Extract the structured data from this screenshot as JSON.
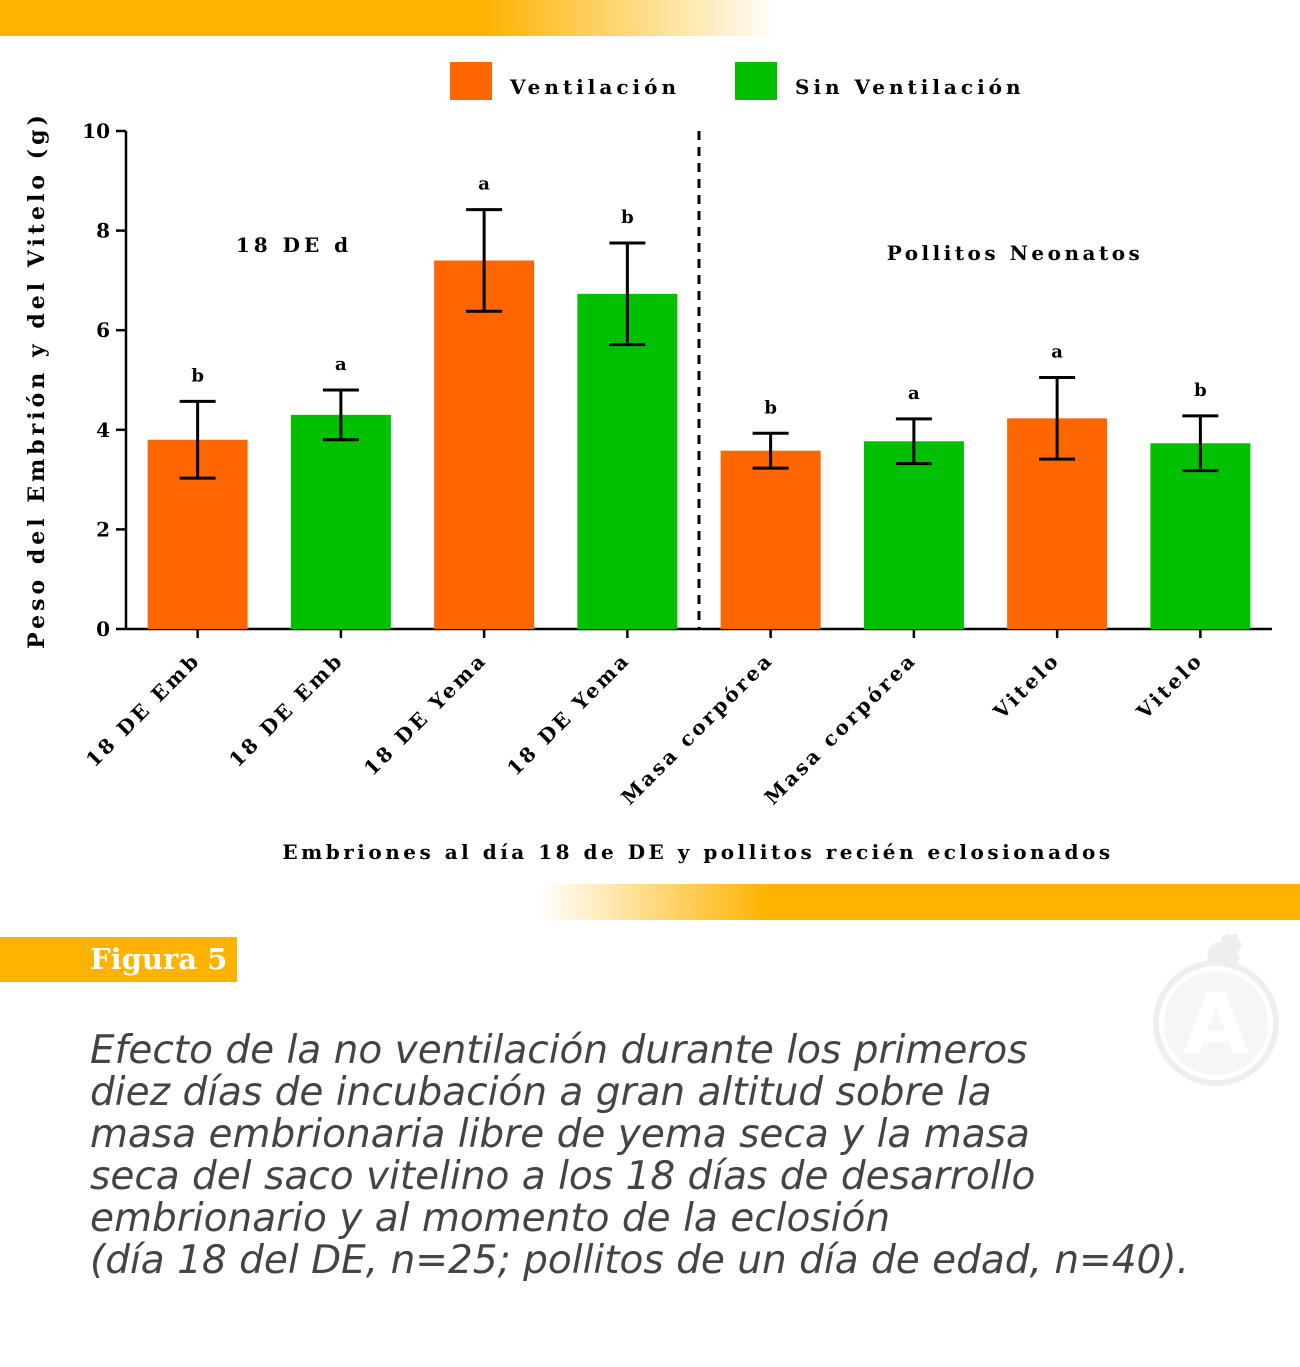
{
  "chart_data": {
    "type": "bar",
    "categories": [
      "18 DE Emb",
      "18 DE Emb",
      "18 DE Yema",
      "18 DE Yema",
      "Masa corpórea",
      "Masa corpórea",
      "Vitelo",
      "Vitelo"
    ],
    "values": [
      3.8,
      4.3,
      7.4,
      6.73,
      3.58,
      3.77,
      4.23,
      3.73
    ],
    "errors": [
      0.77,
      0.5,
      1.02,
      1.02,
      0.35,
      0.45,
      0.82,
      0.55
    ],
    "bar_series": [
      "Ventilación",
      "Sin Ventilación",
      "Ventilación",
      "Sin Ventilación",
      "Ventilación",
      "Sin Ventilación",
      "Ventilación",
      "Sin Ventilación"
    ],
    "significance_letters": [
      "b",
      "a",
      "a",
      "b",
      "b",
      "a",
      "a",
      "b"
    ],
    "series": [
      {
        "name": "Ventilación",
        "color": "#ff6600"
      },
      {
        "name": "Sin Ventilación",
        "color": "#00c000"
      }
    ],
    "xlabel": "Embriones al día 18 de DE y pollitos recién eclosionados",
    "ylabel": "Peso del Embrión y del Vitelo (g)",
    "ylim": [
      0,
      10
    ],
    "yticks": [
      0,
      2,
      4,
      6,
      8,
      10
    ],
    "group_labels": [
      "18 DE d",
      "Pollitos Neonatos"
    ],
    "separator": "dashed vertical line between the two groups",
    "legend": "top-center",
    "grid": false
  },
  "figure": {
    "label": "Figura 5",
    "caption": "Efecto de la no ventilación durante los primeros\ndiez días de incubación a gran altitud sobre la\nmasa embrionaria libre de yema seca y la masa\nseca del saco vitelino a los 18 días de desarrollo\nembrionario y al momento de la eclosión\n(día 18 del DE, n=25; pollitos de un día de edad, n=40)."
  },
  "colors": {
    "accent": "#ffb300",
    "caption_text": "#444444"
  },
  "logo": {
    "letter": "A",
    "icon": "rooster-icon"
  }
}
